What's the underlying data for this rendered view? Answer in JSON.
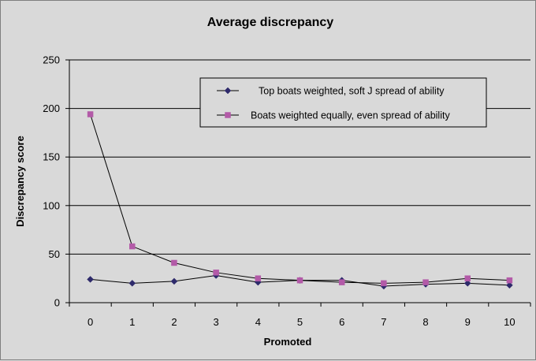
{
  "chart_data": {
    "type": "line",
    "title": "Average discrepancy",
    "xlabel": "Promoted",
    "ylabel": "Discrepancy score",
    "x": [
      0,
      1,
      2,
      3,
      4,
      5,
      6,
      7,
      8,
      9,
      10
    ],
    "ylim": [
      0,
      250
    ],
    "yticks": [
      0,
      50,
      100,
      150,
      200,
      250
    ],
    "grid": true,
    "legend_position": "top-right",
    "series": [
      {
        "name": "Top boats weighted, soft J spread of ability",
        "color": "#2e2a6b",
        "marker": "diamond",
        "values": [
          24,
          20,
          22,
          28,
          21,
          23,
          23,
          17,
          19,
          20,
          18
        ]
      },
      {
        "name": "Boats weighted equally, even spread of ability",
        "color": "#b35aa8",
        "marker": "square",
        "values": [
          194,
          58,
          41,
          31,
          25,
          23,
          21,
          20,
          21,
          25,
          23
        ]
      }
    ]
  }
}
